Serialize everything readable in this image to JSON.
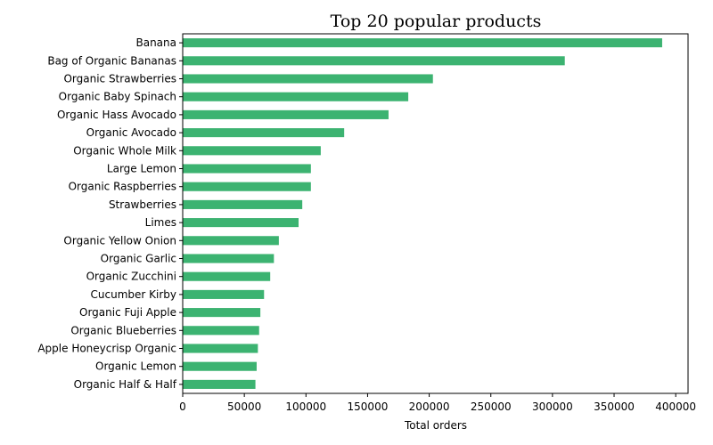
{
  "chart_data": {
    "type": "bar",
    "orientation": "horizontal",
    "title": "Top 20 popular products",
    "xlabel": "Total orders",
    "ylabel": "",
    "xlim": [
      0,
      410000
    ],
    "xticks": [
      0,
      50000,
      100000,
      150000,
      200000,
      250000,
      300000,
      350000,
      400000
    ],
    "grid": false,
    "legend": "none",
    "bar_color": "#3cb371",
    "categories": [
      "Banana",
      "Bag of Organic Bananas",
      "Organic Strawberries",
      "Organic Baby Spinach",
      "Organic Hass Avocado",
      "Organic Avocado",
      "Organic Whole Milk",
      "Large Lemon",
      "Organic Raspberries",
      "Strawberries",
      "Limes",
      "Organic Yellow Onion",
      "Organic Garlic",
      "Organic Zucchini",
      "Cucumber Kirby",
      "Organic Fuji Apple",
      "Organic Blueberries",
      "Apple Honeycrisp Organic",
      "Organic Lemon",
      "Organic Half & Half"
    ],
    "values": [
      389000,
      310000,
      203000,
      183000,
      167000,
      131000,
      112000,
      104000,
      104000,
      97000,
      94000,
      78000,
      74000,
      71000,
      66000,
      63000,
      62000,
      61000,
      60000,
      59000
    ]
  }
}
